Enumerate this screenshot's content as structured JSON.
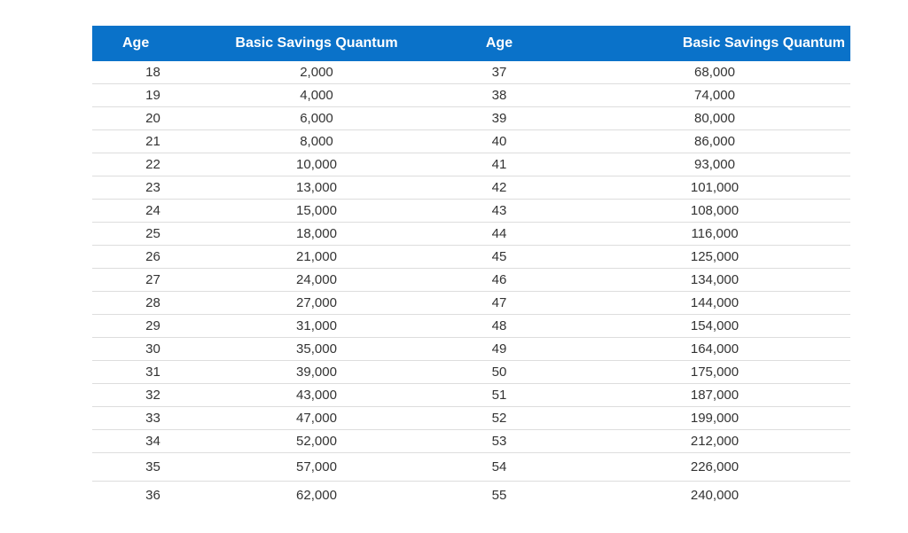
{
  "table": {
    "headers": [
      "Age",
      "Basic Savings Quantum",
      "Age",
      "Basic Savings Quantum"
    ],
    "rows": [
      [
        "18",
        "2,000",
        "37",
        "68,000"
      ],
      [
        "19",
        "4,000",
        "38",
        "74,000"
      ],
      [
        "20",
        "6,000",
        "39",
        "80,000"
      ],
      [
        "21",
        "8,000",
        "40",
        "86,000"
      ],
      [
        "22",
        "10,000",
        "41",
        "93,000"
      ],
      [
        "23",
        "13,000",
        "42",
        "101,000"
      ],
      [
        "24",
        "15,000",
        "43",
        "108,000"
      ],
      [
        "25",
        "18,000",
        "44",
        "116,000"
      ],
      [
        "26",
        "21,000",
        "45",
        "125,000"
      ],
      [
        "27",
        "24,000",
        "46",
        "134,000"
      ],
      [
        "28",
        "27,000",
        "47",
        "144,000"
      ],
      [
        "29",
        "31,000",
        "48",
        "154,000"
      ],
      [
        "30",
        "35,000",
        "49",
        "164,000"
      ],
      [
        "31",
        "39,000",
        "50",
        "175,000"
      ],
      [
        "32",
        "43,000",
        "51",
        "187,000"
      ],
      [
        "33",
        "47,000",
        "52",
        "199,000"
      ],
      [
        "34",
        "52,000",
        "53",
        "212,000"
      ],
      [
        "35",
        "57,000",
        "54",
        "226,000"
      ],
      [
        "36",
        "62,000",
        "55",
        "240,000"
      ]
    ]
  },
  "colors": {
    "header_background": "#0a72c9",
    "header_text": "#ffffff",
    "body_text": "#333333",
    "row_divider": "#dddddd"
  }
}
